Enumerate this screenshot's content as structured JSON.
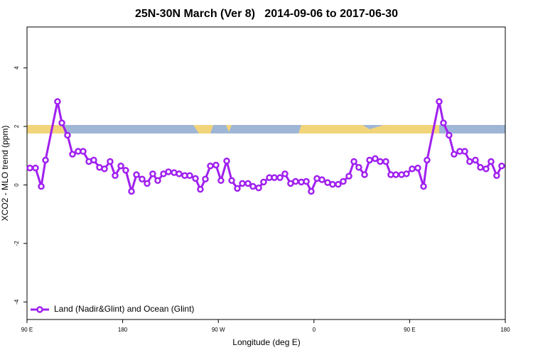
{
  "chart_data": {
    "type": "line",
    "title": "25N-30N March (Ver 8)   2014-09-06 to 2017-06-30",
    "xlabel": "Longitude (deg E)",
    "ylabel": "XCO2 - MLO trend (ppm)",
    "xlim": [
      90,
      540
    ],
    "ylim": [
      -4.6,
      5.4
    ],
    "xticks": [
      {
        "value": 90,
        "label": "90 E"
      },
      180,
      {
        "value": 270,
        "label": "90 W"
      },
      {
        "value": 360,
        "label": "0"
      },
      {
        "value": 450,
        "label": "90 E"
      },
      {
        "value": 540,
        "label": "180"
      }
    ],
    "yticks": [
      -4,
      -2,
      0,
      2,
      4
    ],
    "legend": "bottom-left",
    "series": [
      {
        "name": "Land (Nadir&Glint) and Ocean (Glint)",
        "color": "#a020f0",
        "x": [
          92.7,
          98.0,
          103.4,
          107.4,
          118.7,
          122.8,
          128.1,
          132.8,
          138.1,
          142.8,
          148.2,
          152.8,
          158.2,
          162.9,
          168.2,
          172.9,
          178.3,
          182.9,
          188.3,
          193.0,
          198.3,
          203.0,
          208.3,
          213.0,
          218.4,
          223.1,
          228.4,
          233.1,
          238.4,
          243.1,
          248.5,
          253.1,
          257.8,
          262.5,
          267.8,
          272.5,
          277.9,
          282.6,
          287.9,
          292.6,
          297.9,
          302.6,
          308.0,
          312.6,
          318.0,
          322.7,
          328.0,
          332.7,
          338.0,
          342.7,
          348.1,
          352.8,
          357.4,
          362.8,
          367.5,
          372.8,
          377.5,
          382.8,
          387.5,
          392.9,
          397.6,
          402.2,
          407.6,
          412.3,
          417.6,
          422.3,
          427.6,
          432.3,
          437.0,
          442.4,
          447.0,
          452.4,
          457.7,
          463.1,
          466.4,
          477.8,
          481.8,
          487.1,
          491.8,
          497.2,
          501.9,
          506.5,
          511.9,
          516.6,
          521.9,
          526.6,
          531.9,
          536.6
        ],
        "values": [
          0.58,
          0.58,
          -0.05,
          0.85,
          2.85,
          2.12,
          1.7,
          1.05,
          1.15,
          1.15,
          0.8,
          0.85,
          0.6,
          0.55,
          0.8,
          0.32,
          0.65,
          0.5,
          -0.22,
          0.35,
          0.2,
          0.05,
          0.38,
          0.15,
          0.38,
          0.45,
          0.42,
          0.38,
          0.32,
          0.32,
          0.22,
          -0.15,
          0.2,
          0.65,
          0.68,
          0.15,
          0.82,
          0.15,
          -0.12,
          0.05,
          0.05,
          -0.05,
          -0.1,
          0.1,
          0.25,
          0.25,
          0.25,
          0.38,
          0.05,
          0.12,
          0.1,
          0.12,
          -0.22,
          0.22,
          0.18,
          0.08,
          0.02,
          0.02,
          0.12,
          0.3,
          0.8,
          0.6,
          0.35,
          0.85,
          0.9,
          0.8,
          0.8,
          0.35,
          0.35,
          0.35,
          0.38,
          0.55,
          0.58,
          -0.05,
          0.85,
          2.85,
          2.12,
          1.7,
          1.05,
          1.15,
          1.15,
          0.8,
          0.85,
          0.6,
          0.55,
          0.8,
          0.32,
          0.65
        ]
      }
    ]
  }
}
